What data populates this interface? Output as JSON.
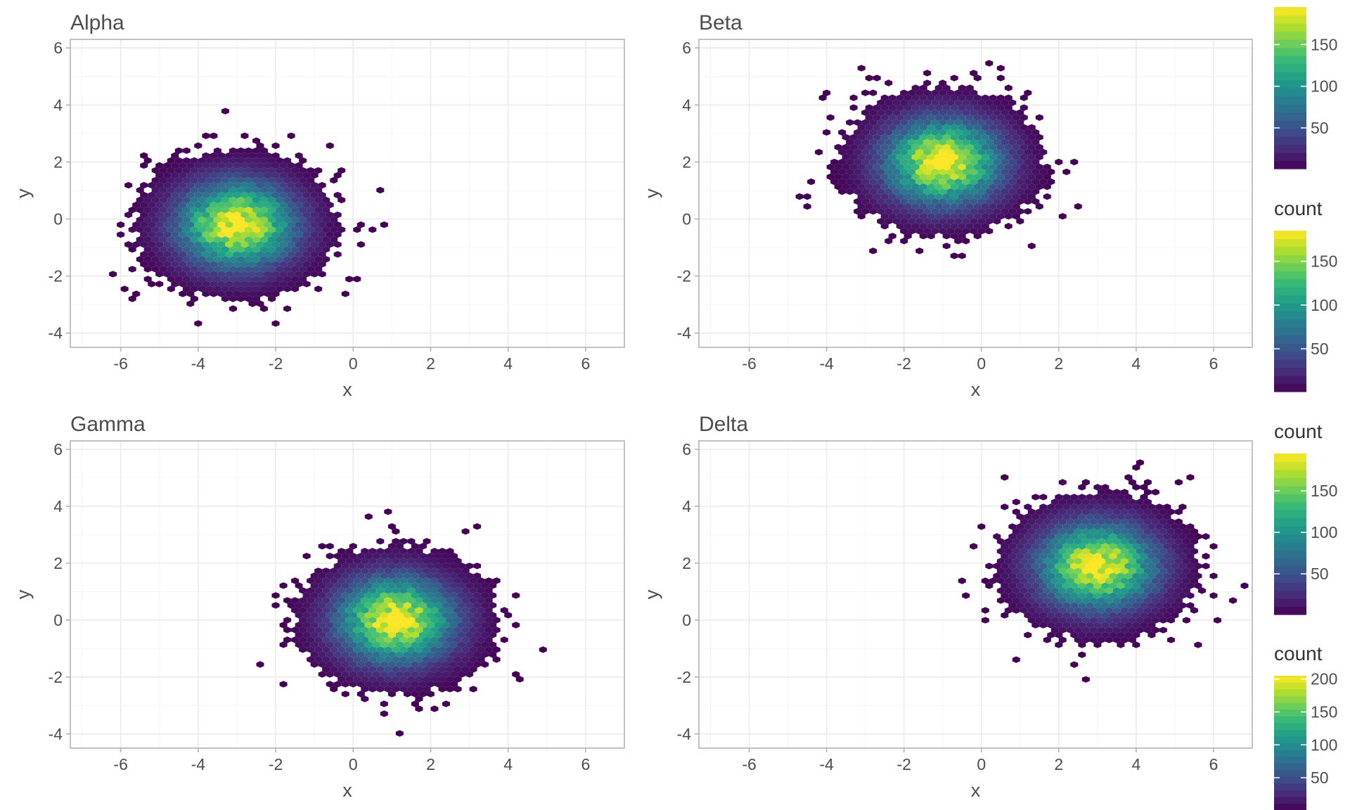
{
  "chart_data": [
    {
      "type": "hexbin",
      "title": "Alpha",
      "xlabel": "x",
      "ylabel": "y",
      "xlim": [
        -7.3,
        7.0
      ],
      "ylim": [
        -4.5,
        6.3
      ],
      "x_ticks": [
        -6,
        -4,
        -2,
        0,
        2,
        4,
        6
      ],
      "y_ticks": [
        -4,
        -2,
        0,
        2,
        4,
        6
      ],
      "center": [
        -3.0,
        -0.2
      ],
      "sd": [
        1.0,
        1.0
      ],
      "count_max": 195,
      "grid": true,
      "legend": {
        "title": "",
        "ticks": [
          50,
          100,
          150
        ],
        "range": [
          1,
          195
        ]
      }
    },
    {
      "type": "hexbin",
      "title": "Beta",
      "xlabel": "x",
      "ylabel": "y",
      "xlim": [
        -7.3,
        7.0
      ],
      "ylim": [
        -4.5,
        6.3
      ],
      "x_ticks": [
        -6,
        -4,
        -2,
        0,
        2,
        4,
        6
      ],
      "y_ticks": [
        -4,
        -2,
        0,
        2,
        4,
        6
      ],
      "center": [
        -1.0,
        2.0
      ],
      "sd": [
        1.0,
        1.0
      ],
      "count_max": 185,
      "grid": true,
      "legend": {
        "title": "count",
        "ticks": [
          50,
          100,
          150
        ],
        "range": [
          1,
          185
        ]
      }
    },
    {
      "type": "hexbin",
      "title": "Gamma",
      "xlabel": "x",
      "ylabel": "y",
      "xlim": [
        -7.3,
        7.0
      ],
      "ylim": [
        -4.5,
        6.3
      ],
      "x_ticks": [
        -6,
        -4,
        -2,
        0,
        2,
        4,
        6
      ],
      "y_ticks": [
        -4,
        -2,
        0,
        2,
        4,
        6
      ],
      "center": [
        1.1,
        0.0
      ],
      "sd": [
        1.0,
        1.0
      ],
      "count_max": 195,
      "grid": true,
      "legend": {
        "title": "count",
        "ticks": [
          50,
          100,
          150
        ],
        "range": [
          1,
          195
        ]
      }
    },
    {
      "type": "hexbin",
      "title": "Delta",
      "xlabel": "x",
      "ylabel": "y",
      "xlim": [
        -7.3,
        7.0
      ],
      "ylim": [
        -4.5,
        6.3
      ],
      "x_ticks": [
        -6,
        -4,
        -2,
        0,
        2,
        4,
        6
      ],
      "y_ticks": [
        -4,
        -2,
        0,
        2,
        4,
        6
      ],
      "center": [
        3.0,
        1.9
      ],
      "sd": [
        1.0,
        1.0
      ],
      "count_max": 205,
      "grid": true,
      "legend": {
        "title": "count",
        "ticks": [
          50,
          100,
          150,
          200
        ],
        "range": [
          1,
          205
        ]
      }
    }
  ],
  "colors": {
    "viridis": [
      "#440154",
      "#482878",
      "#3e4989",
      "#31688e",
      "#26828e",
      "#1f9e89",
      "#35b779",
      "#6ece58",
      "#b5de2b",
      "#fde725"
    ],
    "background": "#ffffff",
    "panel_border": "#b3b3b3",
    "grid": "#ebebeb"
  }
}
